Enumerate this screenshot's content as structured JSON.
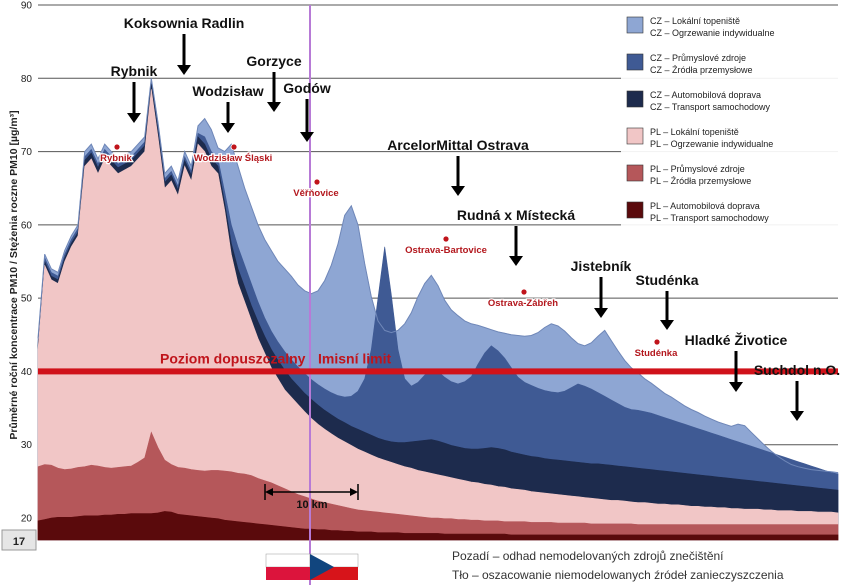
{
  "chart_data": {
    "type": "area",
    "ylabel": "Průměrné roční koncentrace PM10 / Stężenia roczne PM10 [µg/m³]",
    "ylim": [
      20,
      90
    ],
    "yticks": [
      20,
      30,
      40,
      50,
      60,
      70,
      80,
      90
    ],
    "grid": true,
    "legend_position": "top-right",
    "x": [
      0,
      1,
      2,
      3,
      4,
      5,
      6,
      7,
      8,
      9,
      10,
      11,
      12,
      13,
      14,
      15,
      16,
      17,
      18,
      19,
      20,
      21,
      22,
      23,
      24,
      25,
      26,
      27,
      28,
      29,
      30,
      31,
      32,
      33,
      34,
      35,
      36,
      37,
      38,
      39,
      40,
      41,
      42,
      43,
      44,
      45,
      46,
      47,
      48,
      49,
      50,
      51,
      52,
      53,
      54,
      55,
      56,
      57,
      58,
      59,
      60,
      61,
      62,
      63,
      64,
      65,
      66,
      67,
      68,
      69,
      70,
      71,
      72,
      73,
      74,
      75,
      76,
      77,
      78,
      79,
      80,
      81,
      82,
      83,
      84,
      85,
      86,
      87,
      88,
      89,
      90,
      91,
      92,
      93,
      94,
      95,
      96,
      97,
      98,
      99,
      100,
      101,
      102,
      103,
      104,
      105,
      106,
      107,
      108,
      109,
      110,
      111,
      112,
      113,
      114,
      115,
      116,
      117,
      118,
      119,
      120
    ],
    "series": [
      {
        "name": "PL – Automobilová doprava / PL – Transport samochodowy",
        "color": "#5a0a0c",
        "values": [
          19.6,
          19.8,
          20.0,
          20.1,
          20.1,
          20.1,
          20.2,
          20.3,
          20.3,
          20.3,
          20.4,
          20.4,
          20.5,
          20.5,
          20.6,
          20.6,
          20.6,
          20.6,
          20.7,
          20.9,
          20.8,
          20.5,
          20.4,
          20.3,
          20.2,
          20.1,
          20.0,
          19.9,
          19.7,
          19.6,
          19.5,
          19.4,
          19.3,
          19.2,
          19.1,
          19.0,
          18.9,
          18.8,
          18.7,
          18.6,
          18.5,
          18.5,
          18.4,
          18.4,
          18.3,
          18.3,
          18.2,
          18.2,
          18.1,
          18.1,
          18.1,
          18.0,
          18.0,
          18.0,
          18.0,
          17.9,
          17.9,
          17.9,
          17.9,
          17.9,
          17.9,
          17.8,
          17.8,
          17.8,
          17.8,
          17.8,
          17.8,
          17.8,
          17.8,
          17.8,
          17.8,
          17.7,
          17.7,
          17.7,
          17.7,
          17.7,
          17.7,
          17.7,
          17.7,
          17.7,
          17.7,
          17.7,
          17.7,
          17.7,
          17.7,
          17.7,
          17.7,
          17.7,
          17.7,
          17.7,
          17.7,
          17.7,
          17.7,
          17.7,
          17.7,
          17.7,
          17.7,
          17.7,
          17.7,
          17.7,
          17.7,
          17.7,
          17.7,
          17.7,
          17.7,
          17.7,
          17.7,
          17.7,
          17.7,
          17.7,
          17.7,
          17.7,
          17.7,
          17.7,
          17.7,
          17.7,
          17.7,
          17.7,
          17.7,
          17.7,
          17.7
        ]
      },
      {
        "name": "PL – Průmyslové zdroje / PL – Źródła przemysłowe",
        "color": "#b5575a",
        "values": [
          27.0,
          27.3,
          27.2,
          26.8,
          26.6,
          26.7,
          26.9,
          27.0,
          27.2,
          27.1,
          26.9,
          26.8,
          26.9,
          27.0,
          27.1,
          27.6,
          28.2,
          31.7,
          29.6,
          27.9,
          27.3,
          26.9,
          26.8,
          26.6,
          26.5,
          26.4,
          26.5,
          26.5,
          26.4,
          26.3,
          26.1,
          26.0,
          25.8,
          25.4,
          25.1,
          24.8,
          24.4,
          24.0,
          23.6,
          23.2,
          22.9,
          22.6,
          22.3,
          22.1,
          21.9,
          21.7,
          21.5,
          21.3,
          21.1,
          21.0,
          20.9,
          20.8,
          20.7,
          20.6,
          20.5,
          20.4,
          20.3,
          20.2,
          20.1,
          20.0,
          20.0,
          19.9,
          19.9,
          19.8,
          19.8,
          19.7,
          19.7,
          19.6,
          19.6,
          19.6,
          19.5,
          19.5,
          19.5,
          19.5,
          19.4,
          19.4,
          19.4,
          19.4,
          19.3,
          19.3,
          19.3,
          19.3,
          19.3,
          19.2,
          19.2,
          19.2,
          19.2,
          19.2,
          19.2,
          19.2,
          19.1,
          19.1,
          19.1,
          19.1,
          19.1,
          19.1,
          19.1,
          19.1,
          19.1,
          19.1,
          19.1,
          19.1,
          19.1,
          19.1,
          19.1,
          19.1,
          19.1,
          19.1,
          19.1,
          19.1,
          19.1,
          19.1,
          19.1,
          19.1,
          19.1,
          19.1,
          19.1,
          19.1,
          19.1,
          19.1,
          19.1
        ]
      },
      {
        "name": "PL – Lokální topeniště / PL – Ogrzewanie indywidualne",
        "color": "#f1c6c6",
        "values": [
          43.0,
          54.5,
          52.5,
          52.0,
          55.0,
          57.0,
          58.5,
          68.0,
          69.0,
          67.0,
          69.0,
          68.0,
          67.0,
          67.5,
          68.0,
          69.0,
          70.0,
          78.5,
          72.0,
          65.0,
          66.0,
          64.0,
          68.0,
          66.0,
          71.0,
          70.0,
          68.0,
          67.0,
          62.0,
          56.0,
          52.0,
          49.5,
          47.0,
          44.5,
          42.5,
          40.5,
          39.0,
          37.5,
          36.5,
          35.5,
          34.5,
          33.6,
          32.8,
          32.1,
          31.5,
          30.9,
          30.4,
          29.9,
          29.4,
          29.0,
          28.6,
          28.2,
          27.9,
          27.6,
          27.3,
          27.0,
          26.8,
          26.5,
          26.3,
          26.1,
          25.9,
          25.7,
          25.5,
          25.3,
          25.1,
          24.9,
          24.8,
          24.6,
          24.5,
          24.3,
          24.2,
          24.0,
          23.9,
          23.8,
          23.6,
          23.5,
          23.4,
          23.3,
          23.2,
          23.1,
          23.0,
          22.9,
          22.8,
          22.7,
          22.6,
          22.5,
          22.4,
          22.4,
          22.3,
          22.2,
          22.1,
          22.1,
          22.0,
          21.9,
          21.9,
          21.8,
          21.8,
          21.7,
          21.6,
          21.6,
          21.5,
          21.5,
          21.4,
          21.4,
          21.3,
          21.3,
          21.2,
          21.2,
          21.2,
          21.1,
          21.1,
          21.0,
          21.0,
          21.0,
          20.9,
          20.9,
          20.9,
          20.8,
          20.8,
          20.8,
          20.7
        ]
      },
      {
        "name": "CZ – Automobilová doprava / CZ – Transport samochodowy",
        "color": "#1d2b4d",
        "values": [
          43.5,
          55.0,
          53.0,
          52.5,
          55.5,
          57.5,
          59.0,
          68.8,
          69.8,
          67.8,
          69.8,
          68.8,
          67.8,
          68.3,
          68.8,
          69.8,
          70.8,
          79.2,
          72.8,
          65.8,
          66.8,
          64.8,
          68.8,
          66.8,
          72.0,
          71.0,
          69.0,
          68.0,
          63.0,
          57.5,
          54.0,
          51.5,
          49.0,
          46.8,
          44.8,
          43.0,
          41.5,
          40.2,
          39.0,
          38.0,
          37.0,
          36.2,
          35.4,
          34.7,
          34.1,
          33.5,
          33.0,
          32.5,
          32.1,
          31.7,
          31.3,
          30.9,
          30.6,
          30.4,
          30.3,
          30.3,
          30.4,
          30.5,
          30.6,
          30.7,
          30.5,
          30.2,
          29.9,
          29.7,
          29.5,
          29.4,
          29.4,
          29.5,
          29.6,
          29.5,
          29.3,
          29.0,
          28.8,
          28.6,
          28.4,
          28.3,
          28.1,
          28.0,
          27.9,
          27.8,
          27.7,
          27.6,
          27.5,
          27.4,
          27.4,
          27.3,
          27.2,
          27.1,
          27.0,
          26.9,
          26.8,
          26.7,
          26.6,
          26.5,
          26.4,
          26.3,
          26.2,
          26.1,
          26.0,
          25.9,
          25.8,
          25.7,
          25.6,
          25.5,
          25.4,
          25.3,
          25.2,
          25.1,
          25.0,
          24.9,
          24.8,
          24.7,
          24.6,
          24.5,
          24.4,
          24.3,
          24.2,
          24.1,
          24.0,
          23.9,
          23.8
        ]
      },
      {
        "name": "CZ – Průmyslové zdroje / CZ – Źródła przemysłowe",
        "color": "#3f5a94",
        "values": [
          44.0,
          55.5,
          53.5,
          53.0,
          56.0,
          58.0,
          59.5,
          69.3,
          70.3,
          68.3,
          70.3,
          69.3,
          68.3,
          68.8,
          69.3,
          70.3,
          71.3,
          79.6,
          73.3,
          66.3,
          67.3,
          65.3,
          69.3,
          67.3,
          72.5,
          72.0,
          70.0,
          69.0,
          64.5,
          60.0,
          57.0,
          54.5,
          52.0,
          49.5,
          47.3,
          45.5,
          44.0,
          42.7,
          41.6,
          40.6,
          39.7,
          38.9,
          38.2,
          37.6,
          37.1,
          36.7,
          36.5,
          36.6,
          37.3,
          39.0,
          43.0,
          50.0,
          57.0,
          50.5,
          43.0,
          39.0,
          38.0,
          38.5,
          39.5,
          40.3,
          40.0,
          39.2,
          38.6,
          38.3,
          38.6,
          39.3,
          41.0,
          42.5,
          43.5,
          42.8,
          41.8,
          40.5,
          39.2,
          38.5,
          38.1,
          37.7,
          37.4,
          37.2,
          37.1,
          37.3,
          37.8,
          38.3,
          38.0,
          37.6,
          37.1,
          36.6,
          36.1,
          35.6,
          35.1,
          34.8,
          34.7,
          34.5,
          34.3,
          34.0,
          33.7,
          33.4,
          33.1,
          32.8,
          32.5,
          32.2,
          31.9,
          31.6,
          31.3,
          31.0,
          30.7,
          30.4,
          30.1,
          29.8,
          29.5,
          29.2,
          28.9,
          28.6,
          28.3,
          28.0,
          27.7,
          27.4,
          27.1,
          26.8,
          26.5,
          26.2,
          26.0
        ]
      },
      {
        "name": "CZ – Lokální topeniště / CZ – Ogrzewanie indywidualne",
        "color": "#8ea6d3",
        "values": [
          44.5,
          56.0,
          54.0,
          53.5,
          56.5,
          58.5,
          60.0,
          70.0,
          71.0,
          69.0,
          71.0,
          70.0,
          69.0,
          69.5,
          70.0,
          71.0,
          72.0,
          80.0,
          74.0,
          67.0,
          68.0,
          66.0,
          70.0,
          68.0,
          73.5,
          74.5,
          73.0,
          70.5,
          70.0,
          71.0,
          68.0,
          65.0,
          62.5,
          60.0,
          58.0,
          56.5,
          55.0,
          54.0,
          53.0,
          51.8,
          51.0,
          50.6,
          51.0,
          52.4,
          54.5,
          57.4,
          61.3,
          62.6,
          60.0,
          54.7,
          50.2,
          46.9,
          45.6,
          45.3,
          45.6,
          46.5,
          48.0,
          50.2,
          52.0,
          53.1,
          51.7,
          49.7,
          48.4,
          47.6,
          46.9,
          46.5,
          46.3,
          46.0,
          45.7,
          45.4,
          45.2,
          45.0,
          44.9,
          44.8,
          44.9,
          45.3,
          46.0,
          46.5,
          46.2,
          45.5,
          44.6,
          43.8,
          43.5,
          43.9,
          44.8,
          45.6,
          44.2,
          42.8,
          41.5,
          40.5,
          39.8,
          39.0,
          38.4,
          37.7,
          37.0,
          36.5,
          35.9,
          35.3,
          34.8,
          34.4,
          33.9,
          33.5,
          33.1,
          32.8,
          32.5,
          32.8,
          32.6,
          31.7,
          30.8,
          29.9,
          29.1,
          28.4,
          27.8,
          27.3,
          27.0,
          26.8,
          26.6,
          26.5,
          26.4,
          26.3,
          26.2
        ]
      }
    ],
    "limit_line": {
      "value": 40,
      "label_pl": "Poziom dopuszczalny",
      "label_cz": "Imisní limit"
    },
    "scale_bar": {
      "label": "10 km"
    },
    "page_number": "17",
    "cities": [
      {
        "label": "Koksownia Radlin"
      },
      {
        "label": "Rybnik"
      },
      {
        "label": "Wodzisław"
      },
      {
        "label": "Gorzyce"
      },
      {
        "label": "Godów"
      },
      {
        "label": "ArcelorMittal Ostrava"
      },
      {
        "label": "Rudná x Místecká"
      },
      {
        "label": "Jistebník"
      },
      {
        "label": "Studénka"
      },
      {
        "label": "Hladké Životice"
      },
      {
        "label": "Suchdol n.O."
      }
    ],
    "stations": [
      {
        "label": "Rybnik"
      },
      {
        "label": "Wodzisław Śląski"
      },
      {
        "label": "Věřňovice"
      },
      {
        "label": "Ostrava-Bartovice"
      },
      {
        "label": "Ostrava-Zábřeh"
      },
      {
        "label": "Studénka"
      }
    ],
    "legend": [
      {
        "line1": "CZ – Lokální topeniště",
        "line2": "CZ – Ogrzewanie indywidualne",
        "color": "#8ea6d3"
      },
      {
        "line1": "CZ – Průmyslové zdroje",
        "line2": "CZ – Źródła przemysłowe",
        "color": "#3f5a94"
      },
      {
        "line1": "CZ – Automobilová doprava",
        "line2": "CZ – Transport samochodowy",
        "color": "#1d2b4d"
      },
      {
        "line1": "PL – Lokální topeniště",
        "line2": "PL – Ogrzewanie indywidualne",
        "color": "#f1c6c6"
      },
      {
        "line1": "PL – Průmyslové zdroje",
        "line2": "PL – Źródła przemysłowe",
        "color": "#b5575a"
      },
      {
        "line1": "PL – Automobilová doprava",
        "line2": "PL – Transport samochodowy",
        "color": "#5a0a0c"
      }
    ],
    "footnotes": {
      "line1": "Pozadí – odhad nemodelovaných zdrojů znečištění",
      "line2": "Tło – oszacowanie niemodelowanych źródeł zanieczyszczenia"
    }
  }
}
